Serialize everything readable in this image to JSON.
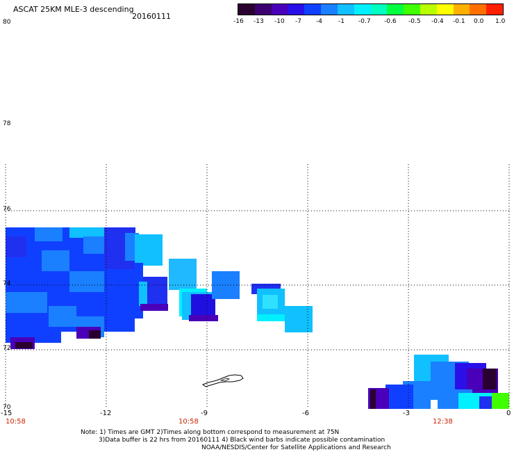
{
  "header": {
    "title": "ASCAT 25KM MLE-3 descending",
    "date": "20160111"
  },
  "colorbar": {
    "colors": [
      "#2a0030",
      "#3c0070",
      "#4a00b8",
      "#2a10e8",
      "#1040ff",
      "#1a80ff",
      "#10c0ff",
      "#00f0ff",
      "#00ffc0",
      "#00ff40",
      "#40ff00",
      "#b8ff00",
      "#ffff00",
      "#ffb000",
      "#ff7000",
      "#ff2000"
    ],
    "ticks": [
      "-16",
      "-13",
      "-10",
      "-7",
      "-4",
      "-1",
      "-0.7",
      "-0.6",
      "-0.5",
      "-0.4",
      "-0.1",
      "0.0",
      "1.0"
    ]
  },
  "map": {
    "lat_labels": [
      "80",
      "78",
      "76",
      "74",
      "72",
      "70"
    ],
    "lon_labels": [
      "-15",
      "-12",
      "-9",
      "-6",
      "-3",
      "0"
    ],
    "time_labels": [
      "10:58",
      "10:58",
      "12:38"
    ],
    "island": "coastline"
  },
  "notes": {
    "line1": "Note: 1) Times are GMT 2)Times along bottom correspond to measurement at 75N",
    "line2": "3)Data buffer is 22 hrs from 20160111 4) Black wind barbs indicate possible contamination",
    "line3": "NOAA/NESDIS/Center for Satellite Applications and Research"
  }
}
